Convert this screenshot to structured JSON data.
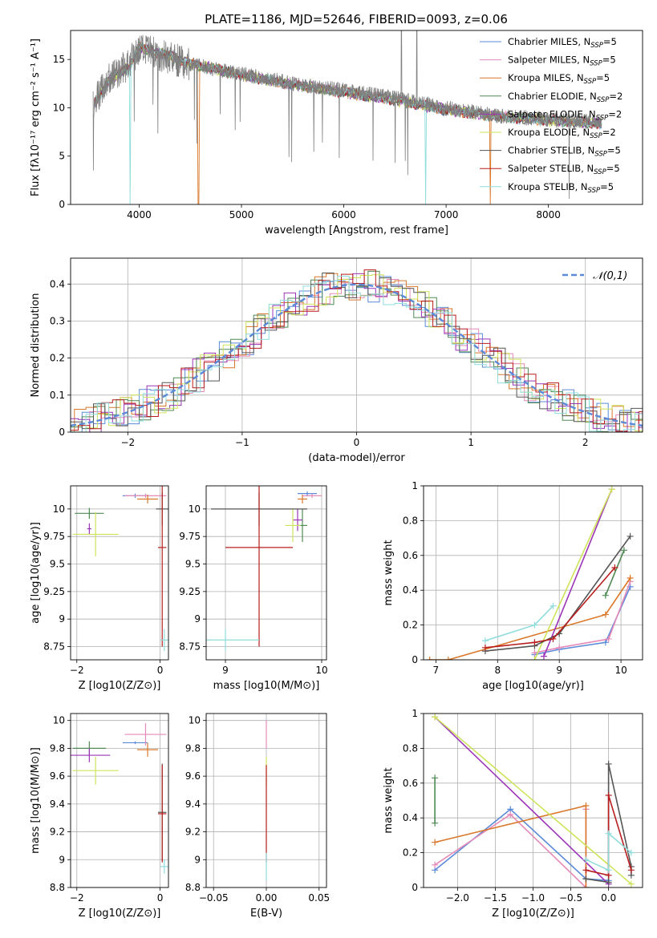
{
  "figure_title": "PLATE=1186, MJD=52646, FIBERID=0093, z=0.06",
  "models": [
    {
      "key": "chabrier_miles",
      "name": "Chabrier MILES, N",
      "sub": "SSP",
      "suffix": "=5",
      "color": "#5b8ad8"
    },
    {
      "key": "salpeter_miles",
      "name": "Salpeter MILES, N",
      "sub": "SSP",
      "suffix": "=5",
      "color": "#e58ab8"
    },
    {
      "key": "kroupa_miles",
      "name": "Kroupa MILES, N",
      "sub": "SSP",
      "suffix": "=5",
      "color": "#d9772a"
    },
    {
      "key": "chabrier_elodie",
      "name": "Chabrier ELODIE, N",
      "sub": "SSP",
      "suffix": "=2",
      "color": "#4f8a52"
    },
    {
      "key": "salpeter_elodie",
      "name": "Salpeter ELODIE, N",
      "sub": "SSP",
      "suffix": "=2",
      "color": "#9b35b8"
    },
    {
      "key": "kroupa_elodie",
      "name": "Kroupa ELODIE, N",
      "sub": "SSP",
      "suffix": "=2",
      "color": "#cfe35a"
    },
    {
      "key": "chabrier_stelib",
      "name": "Chabrier STELIB, N",
      "sub": "SSP",
      "suffix": "=5",
      "color": "#555555"
    },
    {
      "key": "salpeter_stelib",
      "name": "Salpeter STELIB, N",
      "sub": "SSP",
      "suffix": "=5",
      "color": "#b81d1d"
    },
    {
      "key": "kroupa_stelib",
      "name": "Kroupa STELIB, N",
      "sub": "SSP",
      "suffix": "=5",
      "color": "#8fdcdc"
    }
  ],
  "chart_data": [
    {
      "id": "spectrum",
      "type": "line",
      "xlabel": "wavelength [Angstrom, rest frame]",
      "ylabel": "Flux [f",
      "ylabel_full": "Flux [fλ10⁻¹⁷ erg cm⁻² s⁻¹ A⁻¹]",
      "xlim": [
        3330,
        8920
      ],
      "ylim": [
        0,
        18
      ],
      "xticks": [
        4000,
        5000,
        6000,
        7000,
        8000
      ],
      "yticks": [
        0,
        5,
        10,
        15
      ],
      "data_color": "#7f7f7f",
      "observed_envelope": [
        [
          3550,
          10.5
        ],
        [
          3700,
          13
        ],
        [
          3900,
          14.5
        ],
        [
          4000,
          16
        ],
        [
          4200,
          15.5
        ],
        [
          4500,
          14.5
        ],
        [
          5000,
          13.5
        ],
        [
          5500,
          12.5
        ],
        [
          6000,
          11.8
        ],
        [
          6500,
          11
        ],
        [
          7000,
          10
        ],
        [
          7500,
          9.2
        ],
        [
          8000,
          8.8
        ],
        [
          8300,
          8.6
        ],
        [
          8520,
          8.5
        ]
      ],
      "model_envelope": [
        [
          3550,
          10.2
        ],
        [
          3700,
          12.8
        ],
        [
          3900,
          14.2
        ],
        [
          4000,
          16.3
        ],
        [
          4200,
          15.7
        ],
        [
          4500,
          14.6
        ],
        [
          5000,
          13.4
        ],
        [
          5500,
          12.4
        ],
        [
          6000,
          11.6
        ],
        [
          6500,
          10.8
        ],
        [
          7000,
          9.8
        ],
        [
          7500,
          9.1
        ],
        [
          8000,
          8.7
        ],
        [
          8300,
          8.5
        ],
        [
          8520,
          8.4
        ]
      ],
      "grid": false,
      "legend": "top-right"
    },
    {
      "id": "residual_hist",
      "type": "line",
      "xlabel": "(data-model)/error",
      "ylabel": "Normed distribution",
      "xlim": [
        -2.5,
        2.5
      ],
      "ylim": [
        0,
        0.47
      ],
      "xticks": [
        -2,
        -1,
        0,
        1,
        2
      ],
      "yticks": [
        0.0,
        0.1,
        0.2,
        0.3,
        0.4
      ],
      "gaussian_label": "𝒩(0,1)",
      "gaussian_color": "#5b8ad8",
      "grid": true,
      "legend": "top-right"
    },
    {
      "id": "age_vs_Z",
      "type": "scatter",
      "xlabel": "Z [log10(Z/Z⊙)]",
      "ylabel": "age [log10(age/yr)]",
      "xlim": [
        -2.15,
        0.2
      ],
      "ylim": [
        8.63,
        10.21
      ],
      "xticks": [
        -2,
        0
      ],
      "yticks": [
        8.75,
        9.0,
        9.25,
        9.5,
        9.75,
        10.0
      ],
      "points": [
        {
          "model": "chabrier_miles",
          "x": -0.6,
          "y": 10.12,
          "xerr": 0.3,
          "yerr": 0.02
        },
        {
          "model": "salpeter_miles",
          "x": -0.35,
          "y": 10.12,
          "xerr": 0.5,
          "yerr": 0.02
        },
        {
          "model": "kroupa_miles",
          "x": -0.3,
          "y": 10.09,
          "xerr": 0.25,
          "yerr": 0.04
        },
        {
          "model": "chabrier_elodie",
          "x": -1.7,
          "y": 9.96,
          "xerr": 0.35,
          "yerr": 0.05
        },
        {
          "model": "salpeter_elodie",
          "x": -1.7,
          "y": 9.82,
          "xerr": 0.05,
          "yerr": 0.05
        },
        {
          "model": "kroupa_elodie",
          "x": -1.55,
          "y": 9.77,
          "xerr": 0.55,
          "yerr": 0.2
        },
        {
          "model": "chabrier_stelib",
          "x": 0.05,
          "y": 10.0,
          "xerr": 0.15,
          "yerr": 0.15
        },
        {
          "model": "salpeter_stelib",
          "x": 0.05,
          "y": 9.65,
          "xerr": 0.1,
          "yerr": 0.9
        },
        {
          "model": "kroupa_stelib",
          "x": 0.1,
          "y": 8.81,
          "xerr": 0.1,
          "yerr": 0.1
        }
      ],
      "grid": true
    },
    {
      "id": "age_vs_mass",
      "type": "scatter",
      "xlabel": "mass [log10(M/M⊙)]",
      "ylabel": "",
      "xlim": [
        8.8,
        10.05
      ],
      "ylim": [
        8.63,
        10.21
      ],
      "xticks": [
        9,
        10
      ],
      "yticks": [
        8.75,
        9.0,
        9.25,
        9.5,
        9.75,
        10.0
      ],
      "points": [
        {
          "model": "chabrier_miles",
          "x": 9.85,
          "y": 10.14,
          "xerr": 0.1,
          "yerr": 0.02
        },
        {
          "model": "salpeter_miles",
          "x": 9.9,
          "y": 10.12,
          "xerr": 0.1,
          "yerr": 0.02
        },
        {
          "model": "kroupa_miles",
          "x": 9.8,
          "y": 10.09,
          "xerr": 0.05,
          "yerr": 0.04
        },
        {
          "model": "chabrier_elodie",
          "x": 9.8,
          "y": 9.85,
          "xerr": 0.05,
          "yerr": 0.15
        },
        {
          "model": "salpeter_elodie",
          "x": 9.75,
          "y": 9.9,
          "xerr": 0.05,
          "yerr": 0.1
        },
        {
          "model": "kroupa_elodie",
          "x": 9.7,
          "y": 9.85,
          "xerr": 0.08,
          "yerr": 0.15
        },
        {
          "model": "chabrier_stelib",
          "x": 9.35,
          "y": 10.0,
          "xerr": 0.5,
          "yerr": 0.15
        },
        {
          "model": "salpeter_stelib",
          "x": 9.35,
          "y": 9.65,
          "xerr": 0.35,
          "yerr": 0.9
        },
        {
          "model": "kroupa_stelib",
          "x": 9.0,
          "y": 8.81,
          "xerr": 0.35,
          "yerr": 0.1
        }
      ],
      "grid": true
    },
    {
      "id": "massweight_vs_age",
      "type": "line",
      "xlabel": "age [log10(age/yr)]",
      "ylabel": "mass weight",
      "xlim": [
        6.8,
        10.35
      ],
      "ylim": [
        0,
        1
      ],
      "xticks": [
        7,
        8,
        9,
        10
      ],
      "yticks": [
        0.0,
        0.2,
        0.4,
        0.6,
        0.8,
        1.0
      ],
      "series": [
        {
          "model": "chabrier_miles",
          "x": [
            8.6,
            9.0,
            9.75,
            10.15
          ],
          "y": [
            0.03,
            0.06,
            0.1,
            0.42
          ]
        },
        {
          "model": "salpeter_miles",
          "x": [
            8.6,
            9.0,
            9.8,
            10.15
          ],
          "y": [
            0.04,
            0.07,
            0.12,
            0.45
          ]
        },
        {
          "model": "kroupa_miles",
          "x": [
            6.9,
            7.2,
            9.75,
            10.15
          ],
          "y": [
            0.0,
            0.0,
            0.26,
            0.47
          ]
        },
        {
          "model": "chabrier_elodie",
          "x": [
            9.75,
            10.05
          ],
          "y": [
            0.37,
            0.63
          ]
        },
        {
          "model": "salpeter_elodie",
          "x": [
            8.75,
            9.85
          ],
          "y": [
            0.02,
            0.98
          ]
        },
        {
          "model": "kroupa_elodie",
          "x": [
            8.6,
            9.85
          ],
          "y": [
            0.0,
            0.98
          ]
        },
        {
          "model": "chabrier_stelib",
          "x": [
            7.8,
            8.6,
            9.0,
            10.15
          ],
          "y": [
            0.05,
            0.08,
            0.15,
            0.71
          ]
        },
        {
          "model": "salpeter_stelib",
          "x": [
            7.8,
            8.6,
            8.9,
            9.9
          ],
          "y": [
            0.07,
            0.1,
            0.12,
            0.53
          ]
        },
        {
          "model": "kroupa_stelib",
          "x": [
            7.8,
            8.6,
            8.9
          ],
          "y": [
            0.11,
            0.2,
            0.31
          ]
        }
      ],
      "grid": true
    },
    {
      "id": "mass_vs_Z",
      "type": "scatter",
      "xlabel": "Z [log10(Z/Z⊙)]",
      "ylabel": "mass [log10(M/M⊙)]",
      "xlim": [
        -2.15,
        0.2
      ],
      "ylim": [
        8.8,
        10.05
      ],
      "xticks": [
        -2,
        0
      ],
      "yticks": [
        8.8,
        9.0,
        9.2,
        9.4,
        9.6,
        9.8,
        10.0
      ],
      "points": [
        {
          "model": "chabrier_miles",
          "x": -0.6,
          "y": 9.84,
          "xerr": 0.3,
          "yerr": 0.01
        },
        {
          "model": "salpeter_miles",
          "x": -0.35,
          "y": 9.9,
          "xerr": 0.5,
          "yerr": 0.08
        },
        {
          "model": "kroupa_miles",
          "x": -0.3,
          "y": 9.79,
          "xerr": 0.25,
          "yerr": 0.05
        },
        {
          "model": "chabrier_elodie",
          "x": -1.7,
          "y": 9.8,
          "xerr": 0.4,
          "yerr": 0.05
        },
        {
          "model": "salpeter_elodie",
          "x": -1.7,
          "y": 9.75,
          "xerr": 0.5,
          "yerr": 0.05
        },
        {
          "model": "kroupa_elodie",
          "x": -1.55,
          "y": 9.64,
          "xerr": 0.55,
          "yerr": 0.1
        },
        {
          "model": "chabrier_stelib",
          "x": 0.05,
          "y": 9.34,
          "xerr": 0.1,
          "yerr": 0.35
        },
        {
          "model": "salpeter_stelib",
          "x": 0.05,
          "y": 9.33,
          "xerr": 0.1,
          "yerr": 0.35
        },
        {
          "model": "kroupa_stelib",
          "x": 0.1,
          "y": 8.95,
          "xerr": 0.1,
          "yerr": 0.05
        }
      ],
      "grid": true
    },
    {
      "id": "mass_vs_ebv",
      "type": "scatter",
      "xlabel": "E(B-V)",
      "ylabel": "",
      "xlim": [
        -0.057,
        0.057
      ],
      "ylim": [
        8.8,
        10.05
      ],
      "xticks": [
        -0.05,
        0.0,
        0.05
      ],
      "yticks": [
        8.8,
        9.0,
        9.2,
        9.4,
        9.6,
        9.8,
        10.0
      ],
      "xtick_labels": [
        "−0.05",
        "0.00",
        "0.05"
      ],
      "points": [
        {
          "model": "salpeter_miles",
          "x": 0,
          "y": 9.9,
          "xerr": 0,
          "yerr": 0.1
        },
        {
          "model": "kroupa_elodie",
          "x": 0,
          "y": 9.64,
          "xerr": 0,
          "yerr": 0.1
        },
        {
          "model": "salpeter_stelib",
          "x": 0,
          "y": 9.33,
          "xerr": 0,
          "yerr": 0.35
        },
        {
          "model": "kroupa_stelib",
          "x": 0,
          "y": 8.95,
          "xerr": 0,
          "yerr": 0.1
        }
      ],
      "grid": true
    },
    {
      "id": "massweight_vs_Z",
      "type": "line",
      "xlabel": "Z [log10(Z/Z⊙)]",
      "ylabel": "mass weight",
      "xlim": [
        -2.45,
        0.45
      ],
      "ylim": [
        0,
        1
      ],
      "xticks": [
        -2.0,
        -1.5,
        -1.0,
        -0.5,
        0.0
      ],
      "yticks": [
        0.0,
        0.2,
        0.4,
        0.6,
        0.8,
        1.0
      ],
      "xtick_labels": [
        "−2.0",
        "−1.5",
        "−1.0",
        "−0.5",
        "0.0"
      ],
      "series": [
        {
          "model": "chabrier_miles",
          "x": [
            -2.3,
            -1.3,
            -0.3,
            0.0
          ],
          "y": [
            0.1,
            0.45,
            0.05,
            0.04
          ]
        },
        {
          "model": "salpeter_miles",
          "x": [
            -2.3,
            -1.3,
            -0.3,
            -0.3
          ],
          "y": [
            0.13,
            0.42,
            0.0,
            0.45
          ]
        },
        {
          "model": "kroupa_miles",
          "x": [
            -2.3,
            -0.3,
            -0.3
          ],
          "y": [
            0.26,
            0.47,
            0.0
          ]
        },
        {
          "model": "chabrier_elodie",
          "x": [
            -2.3,
            -2.3
          ],
          "y": [
            0.37,
            0.63
          ]
        },
        {
          "model": "salpeter_elodie",
          "x": [
            -2.3,
            0.0
          ],
          "y": [
            0.98,
            0.02
          ]
        },
        {
          "model": "kroupa_elodie",
          "x": [
            -2.3,
            0.3
          ],
          "y": [
            0.98,
            0.02
          ]
        },
        {
          "model": "chabrier_stelib",
          "x": [
            -0.3,
            0.0,
            0.0,
            0.3,
            0.3
          ],
          "y": [
            0.05,
            0.03,
            0.71,
            0.12,
            0.07
          ]
        },
        {
          "model": "salpeter_stelib",
          "x": [
            -0.3,
            0.0,
            0.0,
            0.3
          ],
          "y": [
            0.1,
            0.07,
            0.53,
            0.1
          ]
        },
        {
          "model": "kroupa_stelib",
          "x": [
            -0.3,
            0.0,
            0.0,
            0.3
          ],
          "y": [
            0.16,
            0.1,
            0.31,
            0.2
          ]
        }
      ],
      "grid": true
    }
  ]
}
